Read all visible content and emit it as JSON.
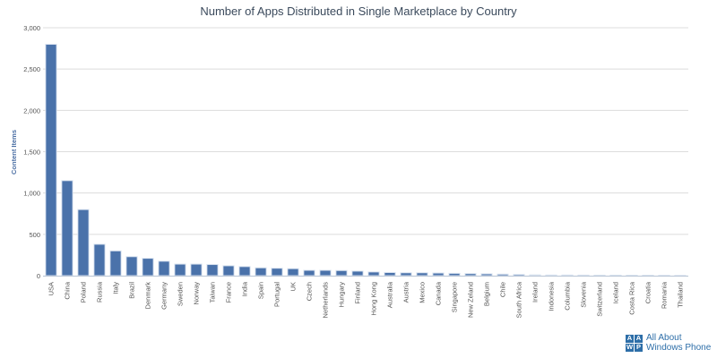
{
  "chart_data": {
    "type": "bar",
    "title": "Number of Apps Distributed in Single Marketplace by Country",
    "ylabel": "Content Items",
    "xlabel": "",
    "ylim": [
      0,
      3000
    ],
    "yticks": [
      "0",
      "500",
      "1,000",
      "1,500",
      "2,000",
      "2,500",
      "3,000"
    ],
    "ytick_values": [
      0,
      500,
      1000,
      1500,
      2000,
      2500,
      3000
    ],
    "grid": true,
    "legend": "none",
    "bar_color": "#4a72aa",
    "categories": [
      "USA",
      "China",
      "Poland",
      "Russia",
      "Italy",
      "Brazil",
      "Denmark",
      "Germany",
      "Sweden",
      "Norway",
      "Taiwan",
      "France",
      "India",
      "Spain",
      "Portugal",
      "UK",
      "Czech",
      "Netherlands",
      "Hungary",
      "Finland",
      "Hong Kong",
      "Australia",
      "Austria",
      "Mexico",
      "Canada",
      "Singapore",
      "New Zeland",
      "Belgium",
      "Chile",
      "South Africa",
      "Ireland",
      "Indonesia",
      "Columbia",
      "Slovenia",
      "Switzerland",
      "Iceland",
      "Costa Rica",
      "Croatia",
      "Romania",
      "Thailand"
    ],
    "values": [
      2800,
      1150,
      800,
      380,
      300,
      230,
      210,
      175,
      140,
      140,
      135,
      120,
      110,
      95,
      90,
      85,
      65,
      65,
      62,
      55,
      45,
      38,
      35,
      35,
      32,
      28,
      25,
      22,
      18,
      15,
      10,
      8,
      8,
      7,
      6,
      6,
      5,
      5,
      4,
      3
    ]
  },
  "branding": {
    "logo_letters": [
      "A",
      "A",
      "W",
      "P"
    ],
    "line1": "All About",
    "line2": "Windows Phone",
    "color": "#2d6ea8"
  }
}
